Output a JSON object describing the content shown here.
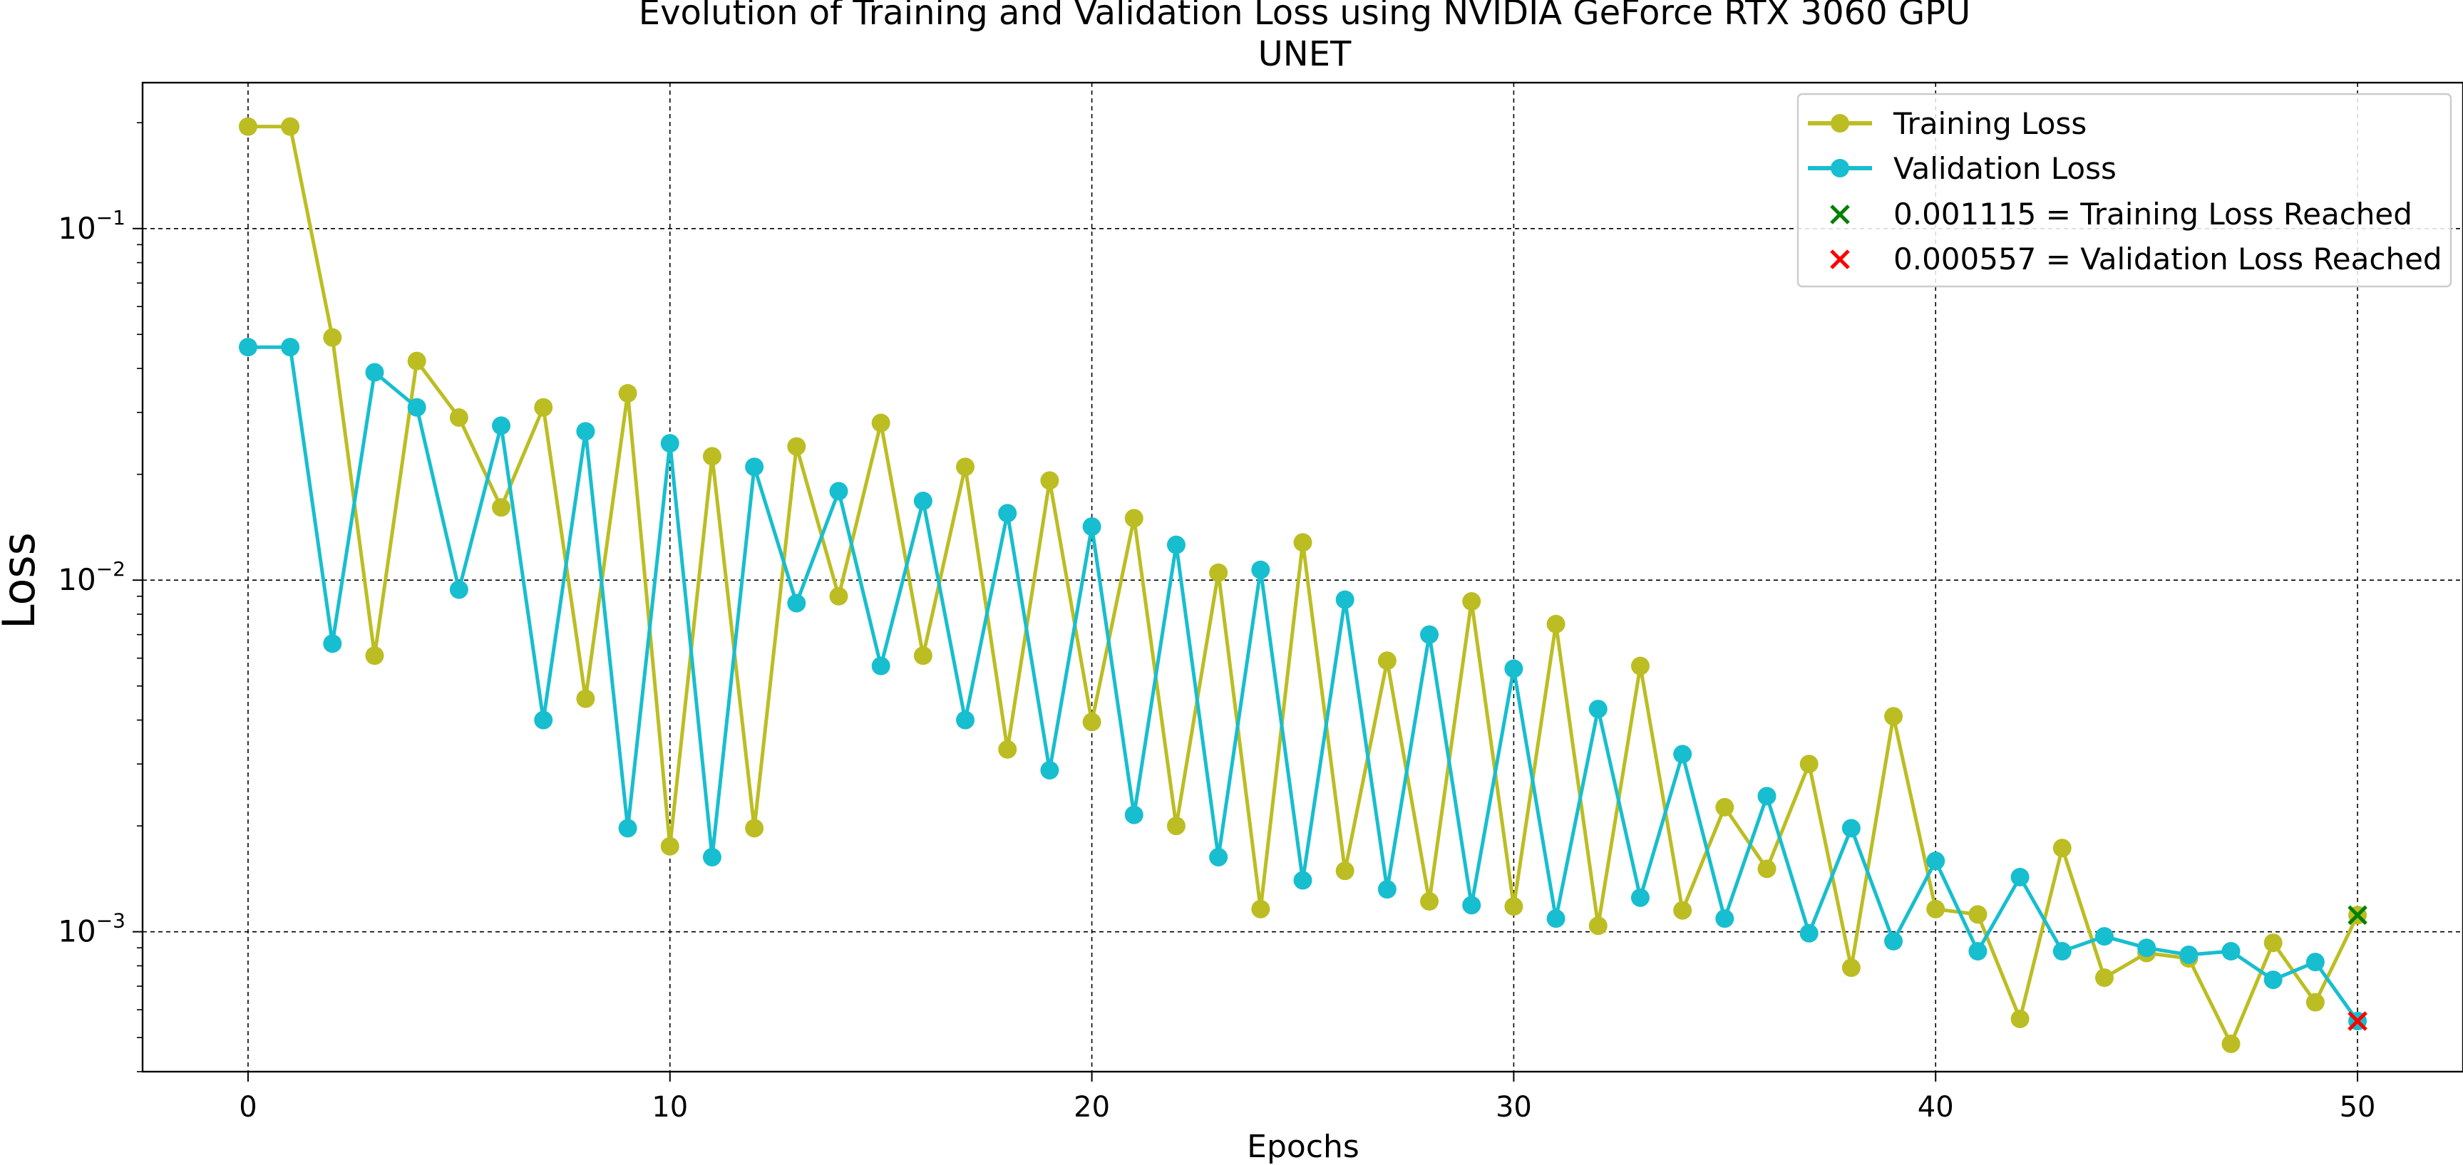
{
  "chart_data": {
    "type": "line",
    "title": "Evolution of Training and Validation Loss using NVIDIA GeForce RTX 3060 GPU",
    "subtitle": "UNET",
    "xlabel": "Epochs",
    "ylabel": "Loss",
    "yscale": "log",
    "xlim": [
      -2.5,
      52.5
    ],
    "ylim": [
      0.0004,
      0.26
    ],
    "grid": true,
    "legend_position": "top-right",
    "x_ticks": [
      0,
      10,
      20,
      30,
      40,
      50
    ],
    "x_tick_labels": [
      "0",
      "10",
      "20",
      "30",
      "40",
      "50"
    ],
    "y_ticks": [
      0.1,
      0.01,
      0.001
    ],
    "y_tick_labels": [
      {
        "base": "10",
        "exp": "−1"
      },
      {
        "base": "10",
        "exp": "−2"
      },
      {
        "base": "10",
        "exp": "−3"
      }
    ],
    "x": [
      0,
      1,
      2,
      3,
      4,
      5,
      6,
      7,
      8,
      9,
      10,
      11,
      12,
      13,
      14,
      15,
      16,
      17,
      18,
      19,
      20,
      21,
      22,
      23,
      24,
      25,
      26,
      27,
      28,
      29,
      30,
      31,
      32,
      33,
      34,
      35,
      36,
      37,
      38,
      39,
      40,
      41,
      42,
      43,
      44,
      45,
      46,
      47,
      48,
      49,
      50
    ],
    "series": [
      {
        "name": "Training Loss",
        "color": "#bcbd22",
        "values": [
          0.195,
          0.195,
          0.049,
          0.0061,
          0.042,
          0.029,
          0.0161,
          0.031,
          0.0046,
          0.034,
          0.00175,
          0.0225,
          0.00197,
          0.024,
          0.009,
          0.028,
          0.0061,
          0.021,
          0.0033,
          0.0192,
          0.00395,
          0.015,
          0.002,
          0.0105,
          0.00116,
          0.0128,
          0.00149,
          0.0059,
          0.00122,
          0.0087,
          0.00118,
          0.0075,
          0.00104,
          0.0057,
          0.00115,
          0.00226,
          0.00151,
          0.003,
          0.00079,
          0.0041,
          0.00116,
          0.00112,
          0.000565,
          0.00173,
          0.00074,
          0.00087,
          0.00084,
          0.00048,
          0.00093,
          0.00063,
          0.001115
        ]
      },
      {
        "name": "Validation Loss",
        "color": "#17becf",
        "values": [
          0.046,
          0.046,
          0.0066,
          0.039,
          0.031,
          0.0094,
          0.0275,
          0.004,
          0.0265,
          0.00197,
          0.0245,
          0.00163,
          0.021,
          0.0086,
          0.0179,
          0.0057,
          0.0168,
          0.004,
          0.0155,
          0.00288,
          0.0142,
          0.00215,
          0.0126,
          0.00163,
          0.0107,
          0.0014,
          0.0088,
          0.00132,
          0.007,
          0.00119,
          0.0056,
          0.00109,
          0.0043,
          0.00125,
          0.0032,
          0.00109,
          0.00243,
          0.00099,
          0.00197,
          0.00094,
          0.00159,
          0.00088,
          0.00143,
          0.00088,
          0.00097,
          0.0009,
          0.00086,
          0.00088,
          0.00073,
          0.00082,
          0.000557
        ]
      }
    ],
    "markers": [
      {
        "label": "0.001115 = Training Loss Reached",
        "x": 50,
        "y": 0.001115,
        "color": "#008000",
        "symbol": "x"
      },
      {
        "label": "0.000557 = Validation Loss Reached",
        "x": 50,
        "y": 0.000557,
        "color": "#ff0000",
        "symbol": "x"
      }
    ]
  }
}
